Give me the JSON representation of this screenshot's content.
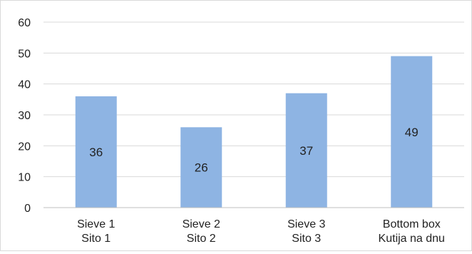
{
  "chart_data": {
    "type": "bar",
    "title": "",
    "xlabel": "",
    "ylabel": "",
    "categories": [
      [
        "Sieve 1",
        "Sito 1"
      ],
      [
        "Sieve 2",
        "Sito 2"
      ],
      [
        "Sieve 3",
        "Sito 3"
      ],
      [
        "Bottom box",
        "Kutija na dnu"
      ]
    ],
    "values": [
      36,
      26,
      37,
      49
    ],
    "data_labels": [
      "36",
      "26",
      "37",
      "49"
    ],
    "ylim": [
      0,
      60
    ],
    "yticks": [
      "0",
      "10",
      "20",
      "30",
      "40",
      "50",
      "60"
    ],
    "grid": true,
    "legend": "none",
    "colors": {
      "bar": "#8eb4e3",
      "grid": "#d9d9d9",
      "axis": "#bfbfbf",
      "text": "#222222"
    }
  }
}
